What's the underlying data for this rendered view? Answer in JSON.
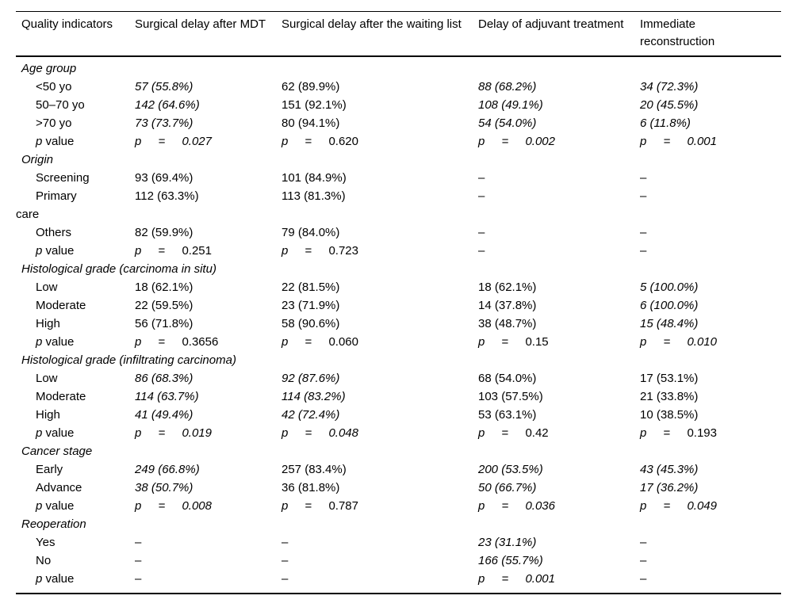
{
  "table": {
    "columns": [
      "Quality indicators",
      "Surgical delay after MDT",
      "Surgical delay after the waiting list",
      "Delay of adjuvant treatment",
      "Immediate reconstruction"
    ],
    "dash": "–",
    "sections": [
      {
        "label": "Age group",
        "rows": [
          {
            "label": {
              "t": "<50 yo"
            },
            "cells": [
              {
                "t": "57 (55.8%)",
                "i": true
              },
              {
                "t": "62 (89.9%)"
              },
              {
                "t": "88 (68.2%)",
                "i": true
              },
              {
                "t": "34 (72.3%)",
                "i": true
              }
            ]
          },
          {
            "label": {
              "t": "50–70 yo"
            },
            "cells": [
              {
                "t": "142 (64.6%)",
                "i": true
              },
              {
                "t": "151 (92.1%)"
              },
              {
                "t": "108 (49.1%)",
                "i": true
              },
              {
                "t": "20 (45.5%)",
                "i": true
              }
            ]
          },
          {
            "label": {
              "t": ">70 yo"
            },
            "cells": [
              {
                "t": "73 (73.7%)",
                "i": true
              },
              {
                "t": "80 (94.1%)"
              },
              {
                "t": "54 (54.0%)",
                "i": true
              },
              {
                "t": "6 (11.8%)",
                "i": true
              }
            ]
          },
          {
            "label": {
              "t": "p value",
              "p": true
            },
            "cells": [
              {
                "t": "p = 0.027",
                "p": true,
                "i": true
              },
              {
                "t": "p = 0.620",
                "p": true
              },
              {
                "t": "p = 0.002",
                "p": true,
                "i": true
              },
              {
                "t": "p = 0.001",
                "p": true,
                "i": true
              }
            ]
          }
        ]
      },
      {
        "label": "Origin",
        "rows": [
          {
            "label": {
              "t": "Screening"
            },
            "cells": [
              {
                "t": "93 (69.4%)"
              },
              {
                "t": "101 (84.9%)"
              },
              {
                "t": "–"
              },
              {
                "t": "–"
              }
            ]
          },
          {
            "label": {
              "t": "Primary\ncare"
            },
            "cells": [
              {
                "t": "112 (63.3%)"
              },
              {
                "t": "113 (81.3%)"
              },
              {
                "t": "–"
              },
              {
                "t": "–"
              }
            ]
          },
          {
            "label": {
              "t": "Others"
            },
            "cells": [
              {
                "t": "82 (59.9%)"
              },
              {
                "t": "79 (84.0%)"
              },
              {
                "t": "–"
              },
              {
                "t": "–"
              }
            ]
          },
          {
            "label": {
              "t": "p value",
              "p": true
            },
            "cells": [
              {
                "t": "p = 0.251",
                "p": true
              },
              {
                "t": "p = 0.723",
                "p": true
              },
              {
                "t": "–"
              },
              {
                "t": "–"
              }
            ]
          }
        ]
      },
      {
        "label": "Histological grade (carcinoma in situ)",
        "rows": [
          {
            "label": {
              "t": "Low"
            },
            "cells": [
              {
                "t": "18 (62.1%)"
              },
              {
                "t": "22 (81.5%)"
              },
              {
                "t": "18 (62.1%)"
              },
              {
                "t": "5 (100.0%)",
                "i": true
              }
            ]
          },
          {
            "label": {
              "t": "Moderate"
            },
            "cells": [
              {
                "t": "22 (59.5%)"
              },
              {
                "t": "23 (71.9%)"
              },
              {
                "t": "14 (37.8%)"
              },
              {
                "t": "6 (100.0%)",
                "i": true
              }
            ]
          },
          {
            "label": {
              "t": "High"
            },
            "cells": [
              {
                "t": "56 (71.8%)"
              },
              {
                "t": "58 (90.6%)"
              },
              {
                "t": "38 (48.7%)"
              },
              {
                "t": "15 (48.4%)",
                "i": true
              }
            ]
          },
          {
            "label": {
              "t": "p value",
              "p": true
            },
            "cells": [
              {
                "t": "p = 0.3656",
                "p": true
              },
              {
                "t": "p = 0.060",
                "p": true
              },
              {
                "t": "p = 0.15",
                "p": true
              },
              {
                "t": "p = 0.010",
                "p": true,
                "i": true
              }
            ]
          }
        ]
      },
      {
        "label": "Histological grade (infiltrating carcinoma)",
        "rows": [
          {
            "label": {
              "t": "Low"
            },
            "cells": [
              {
                "t": "86 (68.3%)",
                "i": true
              },
              {
                "t": "92 (87.6%)",
                "i": true
              },
              {
                "t": "68 (54.0%)"
              },
              {
                "t": "17 (53.1%)"
              }
            ]
          },
          {
            "label": {
              "t": "Moderate"
            },
            "cells": [
              {
                "t": "114 (63.7%)",
                "i": true
              },
              {
                "t": "114 (83.2%)",
                "i": true
              },
              {
                "t": "103 (57.5%)"
              },
              {
                "t": "21 (33.8%)"
              }
            ]
          },
          {
            "label": {
              "t": "High"
            },
            "cells": [
              {
                "t": "41 (49.4%)",
                "i": true
              },
              {
                "t": "42 (72.4%)",
                "i": true
              },
              {
                "t": "53 (63.1%)"
              },
              {
                "t": "10 (38.5%)"
              }
            ]
          },
          {
            "label": {
              "t": "p value",
              "p": true
            },
            "cells": [
              {
                "t": "p = 0.019",
                "p": true,
                "i": true
              },
              {
                "t": "p = 0.048",
                "p": true,
                "i": true
              },
              {
                "t": "p = 0.42",
                "p": true
              },
              {
                "t": "p = 0.193",
                "p": true
              }
            ]
          }
        ]
      },
      {
        "label": "Cancer stage",
        "rows": [
          {
            "label": {
              "t": "Early"
            },
            "cells": [
              {
                "t": "249 (66.8%)",
                "i": true
              },
              {
                "t": "257 (83.4%)"
              },
              {
                "t": "200 (53.5%)",
                "i": true
              },
              {
                "t": "43 (45.3%)",
                "i": true
              }
            ]
          },
          {
            "label": {
              "t": "Advance"
            },
            "cells": [
              {
                "t": "38 (50.7%)",
                "i": true
              },
              {
                "t": "36 (81.8%)"
              },
              {
                "t": "50 (66.7%)",
                "i": true
              },
              {
                "t": "17 (36.2%)",
                "i": true
              }
            ]
          },
          {
            "label": {
              "t": "p value",
              "p": true
            },
            "cells": [
              {
                "t": "p = 0.008",
                "p": true,
                "i": true
              },
              {
                "t": "p = 0.787",
                "p": true
              },
              {
                "t": "p = 0.036",
                "p": true,
                "i": true
              },
              {
                "t": "p = 0.049",
                "p": true,
                "i": true
              }
            ]
          }
        ]
      },
      {
        "label": "Reoperation",
        "rows": [
          {
            "label": {
              "t": "Yes"
            },
            "cells": [
              {
                "t": "–"
              },
              {
                "t": "–"
              },
              {
                "t": "23 (31.1%)",
                "i": true
              },
              {
                "t": "–"
              }
            ]
          },
          {
            "label": {
              "t": "No"
            },
            "cells": [
              {
                "t": "–"
              },
              {
                "t": "–"
              },
              {
                "t": "166 (55.7%)",
                "i": true
              },
              {
                "t": "–"
              }
            ]
          },
          {
            "label": {
              "t": "p value",
              "p": true
            },
            "cells": [
              {
                "t": "–"
              },
              {
                "t": "–"
              },
              {
                "t": "p = 0.001",
                "p": true,
                "i": true
              },
              {
                "t": "–"
              }
            ]
          }
        ]
      }
    ]
  }
}
